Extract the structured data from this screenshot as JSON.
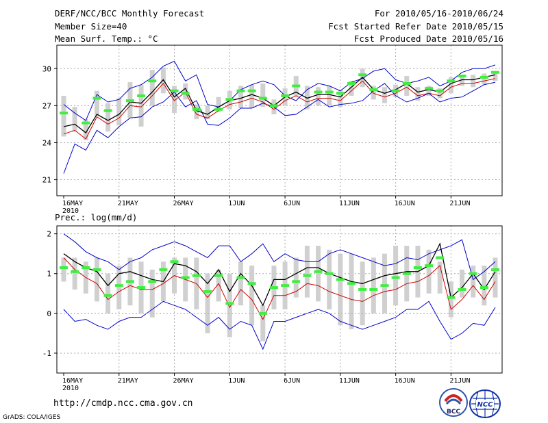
{
  "header": {
    "title": "DERF/NCC/BCC Monthly Forecast",
    "member_size": "Member Size=40",
    "variable": "Mean Surf. Temp.: °C",
    "period": "For 2010/05/16-2010/06/24",
    "refer_date": "Fcst Started Refer Date 2010/05/15",
    "produced_date": "Fcst Produced Date 2010/05/16"
  },
  "footer": {
    "url": "http://cmdp.ncc.cma.gov.cn",
    "grads": "GrADS: COLA/IGES",
    "logo_left_text": "BCC",
    "logo_right_text": "NCC"
  },
  "colors": {
    "envelope": "#0000cc",
    "mean": "#000000",
    "median": "#cc0000",
    "ensemble_box": "#d0d0d0",
    "observed": "#40ee40",
    "grid": "#aaaaaa"
  },
  "chart_data": [
    {
      "type": "line",
      "title": "Mean Surf. Temp.: °C",
      "x_ticks": [
        "16MAY",
        "21MAY",
        "26MAY",
        "1JUN",
        "6JUN",
        "11JUN",
        "16JUN",
        "21JUN"
      ],
      "x_year": "2010",
      "x_range": [
        0,
        39
      ],
      "ylim": [
        19.7,
        31.9
      ],
      "yticks": [
        21,
        24,
        27,
        30
      ],
      "upper": [
        27.1,
        26.4,
        25.8,
        27.9,
        27.3,
        27.5,
        28.4,
        28.7,
        29.3,
        30.2,
        30.6,
        29.0,
        29.5,
        27.1,
        26.9,
        27.4,
        28.3,
        28.7,
        29.0,
        28.7,
        27.8,
        27.4,
        28.3,
        28.8,
        28.6,
        28.2,
        28.9,
        29.2,
        29.8,
        30.0,
        29.1,
        28.8,
        29.0,
        29.3,
        28.6,
        29.0,
        29.7,
        30.0,
        30.0,
        30.3
      ],
      "lower": [
        21.5,
        23.9,
        23.4,
        25.0,
        24.4,
        25.3,
        26.0,
        26.1,
        26.9,
        27.3,
        28.1,
        26.9,
        27.4,
        25.5,
        25.4,
        26.0,
        26.8,
        26.8,
        27.2,
        26.9,
        26.2,
        26.3,
        26.9,
        27.5,
        26.9,
        27.1,
        27.2,
        27.4,
        28.2,
        28.8,
        27.8,
        27.3,
        27.6,
        28.0,
        27.3,
        27.6,
        27.7,
        28.2,
        28.7,
        28.9
      ],
      "mean": [
        25.3,
        25.5,
        24.8,
        26.3,
        25.8,
        26.3,
        27.3,
        27.2,
        28.1,
        29.1,
        27.7,
        28.4,
        26.6,
        26.3,
        26.9,
        27.4,
        27.6,
        27.9,
        27.6,
        27.0,
        27.7,
        28.1,
        27.6,
        27.9,
        27.9,
        27.7,
        28.5,
        29.3,
        28.3,
        28.0,
        28.3,
        28.8,
        28.1,
        28.3,
        28.1,
        28.8,
        29.1,
        29.1,
        29.3,
        29.5
      ],
      "median": [
        24.7,
        25.0,
        24.3,
        26.1,
        25.5,
        26.0,
        27.0,
        26.9,
        27.8,
        28.8,
        27.4,
        28.1,
        26.3,
        26.0,
        26.6,
        27.1,
        27.3,
        27.6,
        27.3,
        26.7,
        27.4,
        27.8,
        27.3,
        27.6,
        27.6,
        27.4,
        28.2,
        29.0,
        28.0,
        27.7,
        28.0,
        28.5,
        27.8,
        28.0,
        27.8,
        28.5,
        28.8,
        28.8,
        29.0,
        29.2
      ],
      "box_low": [
        24.5,
        24.9,
        24.2,
        26.2,
        24.9,
        25.4,
        26.0,
        25.3,
        27.0,
        28.0,
        26.4,
        27.5,
        25.9,
        25.9,
        26.5,
        26.7,
        26.8,
        26.8,
        26.9,
        26.3,
        27.0,
        27.8,
        26.7,
        27.0,
        27.0,
        26.9,
        27.8,
        28.5,
        27.5,
        27.2,
        27.7,
        27.8,
        27.4,
        27.8,
        27.6,
        28.0,
        28.6,
        28.5,
        28.7,
        29.0
      ],
      "box_high": [
        27.8,
        26.9,
        25.9,
        28.2,
        27.2,
        27.6,
        28.9,
        28.7,
        29.9,
        30.1,
        28.6,
        28.8,
        27.1,
        27.0,
        27.7,
        28.2,
        28.6,
        28.7,
        28.8,
        27.5,
        28.4,
        29.4,
        28.6,
        28.5,
        28.6,
        28.3,
        29.0,
        30.0,
        28.6,
        28.5,
        28.7,
        29.4,
        28.5,
        28.6,
        28.4,
        29.3,
        29.5,
        29.5,
        29.6,
        29.8
      ],
      "observed": [
        26.4,
        null,
        25.6,
        27.6,
        26.6,
        null,
        27.4,
        27.8,
        29.0,
        null,
        28.2,
        28.0,
        26.7,
        null,
        26.7,
        27.5,
        28.2,
        28.2,
        27.6,
        27.0,
        27.8,
        28.6,
        null,
        28.1,
        28.1,
        28.0,
        28.8,
        29.5,
        28.3,
        null,
        28.2,
        28.8,
        null,
        28.4,
        28.2,
        29.0,
        29.4,
        null,
        29.3,
        29.7
      ]
    },
    {
      "type": "line",
      "title": "Prec.: log(mm/d)",
      "x_ticks": [
        "16MAY",
        "21MAY",
        "26MAY",
        "1JUN",
        "6JUN",
        "11JUN",
        "16JUN",
        "21JUN"
      ],
      "x_year": "2010",
      "x_range": [
        0,
        39
      ],
      "ylim": [
        -1.5,
        2.2
      ],
      "yticks": [
        -1,
        0,
        1,
        2
      ],
      "upper": [
        2.0,
        1.8,
        1.55,
        1.4,
        1.3,
        1.1,
        1.3,
        1.4,
        1.6,
        1.7,
        1.8,
        1.7,
        1.55,
        1.4,
        1.7,
        1.7,
        1.3,
        1.5,
        1.75,
        1.3,
        1.5,
        1.35,
        1.3,
        1.3,
        1.5,
        1.6,
        1.5,
        1.4,
        1.3,
        1.2,
        1.25,
        1.4,
        1.35,
        1.5,
        1.6,
        1.7,
        1.85,
        0.85,
        1.05,
        1.3
      ],
      "lower": [
        0.1,
        -0.2,
        -0.15,
        -0.3,
        -0.4,
        -0.2,
        -0.1,
        -0.1,
        0.1,
        0.3,
        0.2,
        0.1,
        -0.1,
        -0.3,
        -0.1,
        -0.4,
        -0.2,
        -0.3,
        -0.9,
        -0.2,
        -0.2,
        -0.1,
        0.0,
        0.1,
        0.0,
        -0.2,
        -0.3,
        -0.4,
        -0.3,
        -0.2,
        -0.1,
        0.1,
        0.1,
        0.3,
        -0.2,
        -0.65,
        -0.5,
        -0.25,
        -0.3,
        0.15
      ],
      "mean": [
        1.5,
        1.3,
        1.15,
        1.05,
        0.7,
        1.0,
        1.05,
        0.95,
        0.85,
        0.8,
        1.25,
        1.2,
        1.05,
        0.75,
        1.1,
        0.55,
        1.0,
        0.7,
        0.2,
        0.85,
        0.85,
        1.0,
        1.15,
        1.15,
        1.0,
        0.9,
        0.8,
        0.75,
        0.85,
        0.95,
        1.0,
        1.05,
        1.05,
        1.2,
        1.75,
        0.4,
        0.65,
        1.0,
        0.6,
        1.05
      ],
      "median": [
        1.4,
        1.1,
        0.9,
        0.75,
        0.35,
        0.55,
        0.7,
        0.6,
        0.6,
        0.75,
        0.95,
        0.85,
        0.75,
        0.4,
        0.75,
        0.15,
        0.6,
        0.35,
        -0.15,
        0.45,
        0.45,
        0.55,
        0.75,
        0.7,
        0.55,
        0.45,
        0.35,
        0.3,
        0.45,
        0.55,
        0.6,
        0.75,
        0.8,
        0.95,
        1.2,
        0.1,
        0.35,
        0.7,
        0.35,
        0.8
      ],
      "box_low": [
        0.8,
        0.6,
        0.5,
        0.3,
        0.0,
        0.1,
        0.2,
        0.0,
        -0.1,
        0.3,
        0.5,
        0.3,
        0.1,
        -0.5,
        0.3,
        -0.6,
        0.2,
        -0.3,
        -0.7,
        0.1,
        0.1,
        0.4,
        0.4,
        0.3,
        0.1,
        -0.3,
        -0.4,
        -0.3,
        0.0,
        0.0,
        0.2,
        0.3,
        0.4,
        0.5,
        0.5,
        -0.1,
        0.4,
        0.4,
        0.2,
        0.4
      ],
      "box_high": [
        1.4,
        1.4,
        1.3,
        1.4,
        1.0,
        1.2,
        1.4,
        1.3,
        1.1,
        1.3,
        1.4,
        1.4,
        1.4,
        1.0,
        1.1,
        1.0,
        1.3,
        1.2,
        0.2,
        1.2,
        1.3,
        1.4,
        1.7,
        1.7,
        1.6,
        1.5,
        1.5,
        1.3,
        1.4,
        1.5,
        1.7,
        1.7,
        1.7,
        1.6,
        1.3,
        0.8,
        1.1,
        1.2,
        1.2,
        1.4
      ],
      "observed": [
        1.15,
        1.05,
        1.15,
        1.1,
        0.45,
        0.7,
        0.8,
        0.65,
        0.8,
        1.1,
        1.3,
        0.9,
        0.95,
        0.55,
        0.95,
        0.25,
        0.9,
        0.75,
        0.0,
        0.65,
        0.7,
        0.8,
        0.95,
        1.05,
        1.0,
        0.85,
        0.75,
        0.6,
        0.6,
        0.7,
        0.9,
        1.0,
        1.15,
        1.2,
        1.4,
        0.4,
        0.6,
        1.0,
        0.65,
        1.1
      ]
    }
  ]
}
